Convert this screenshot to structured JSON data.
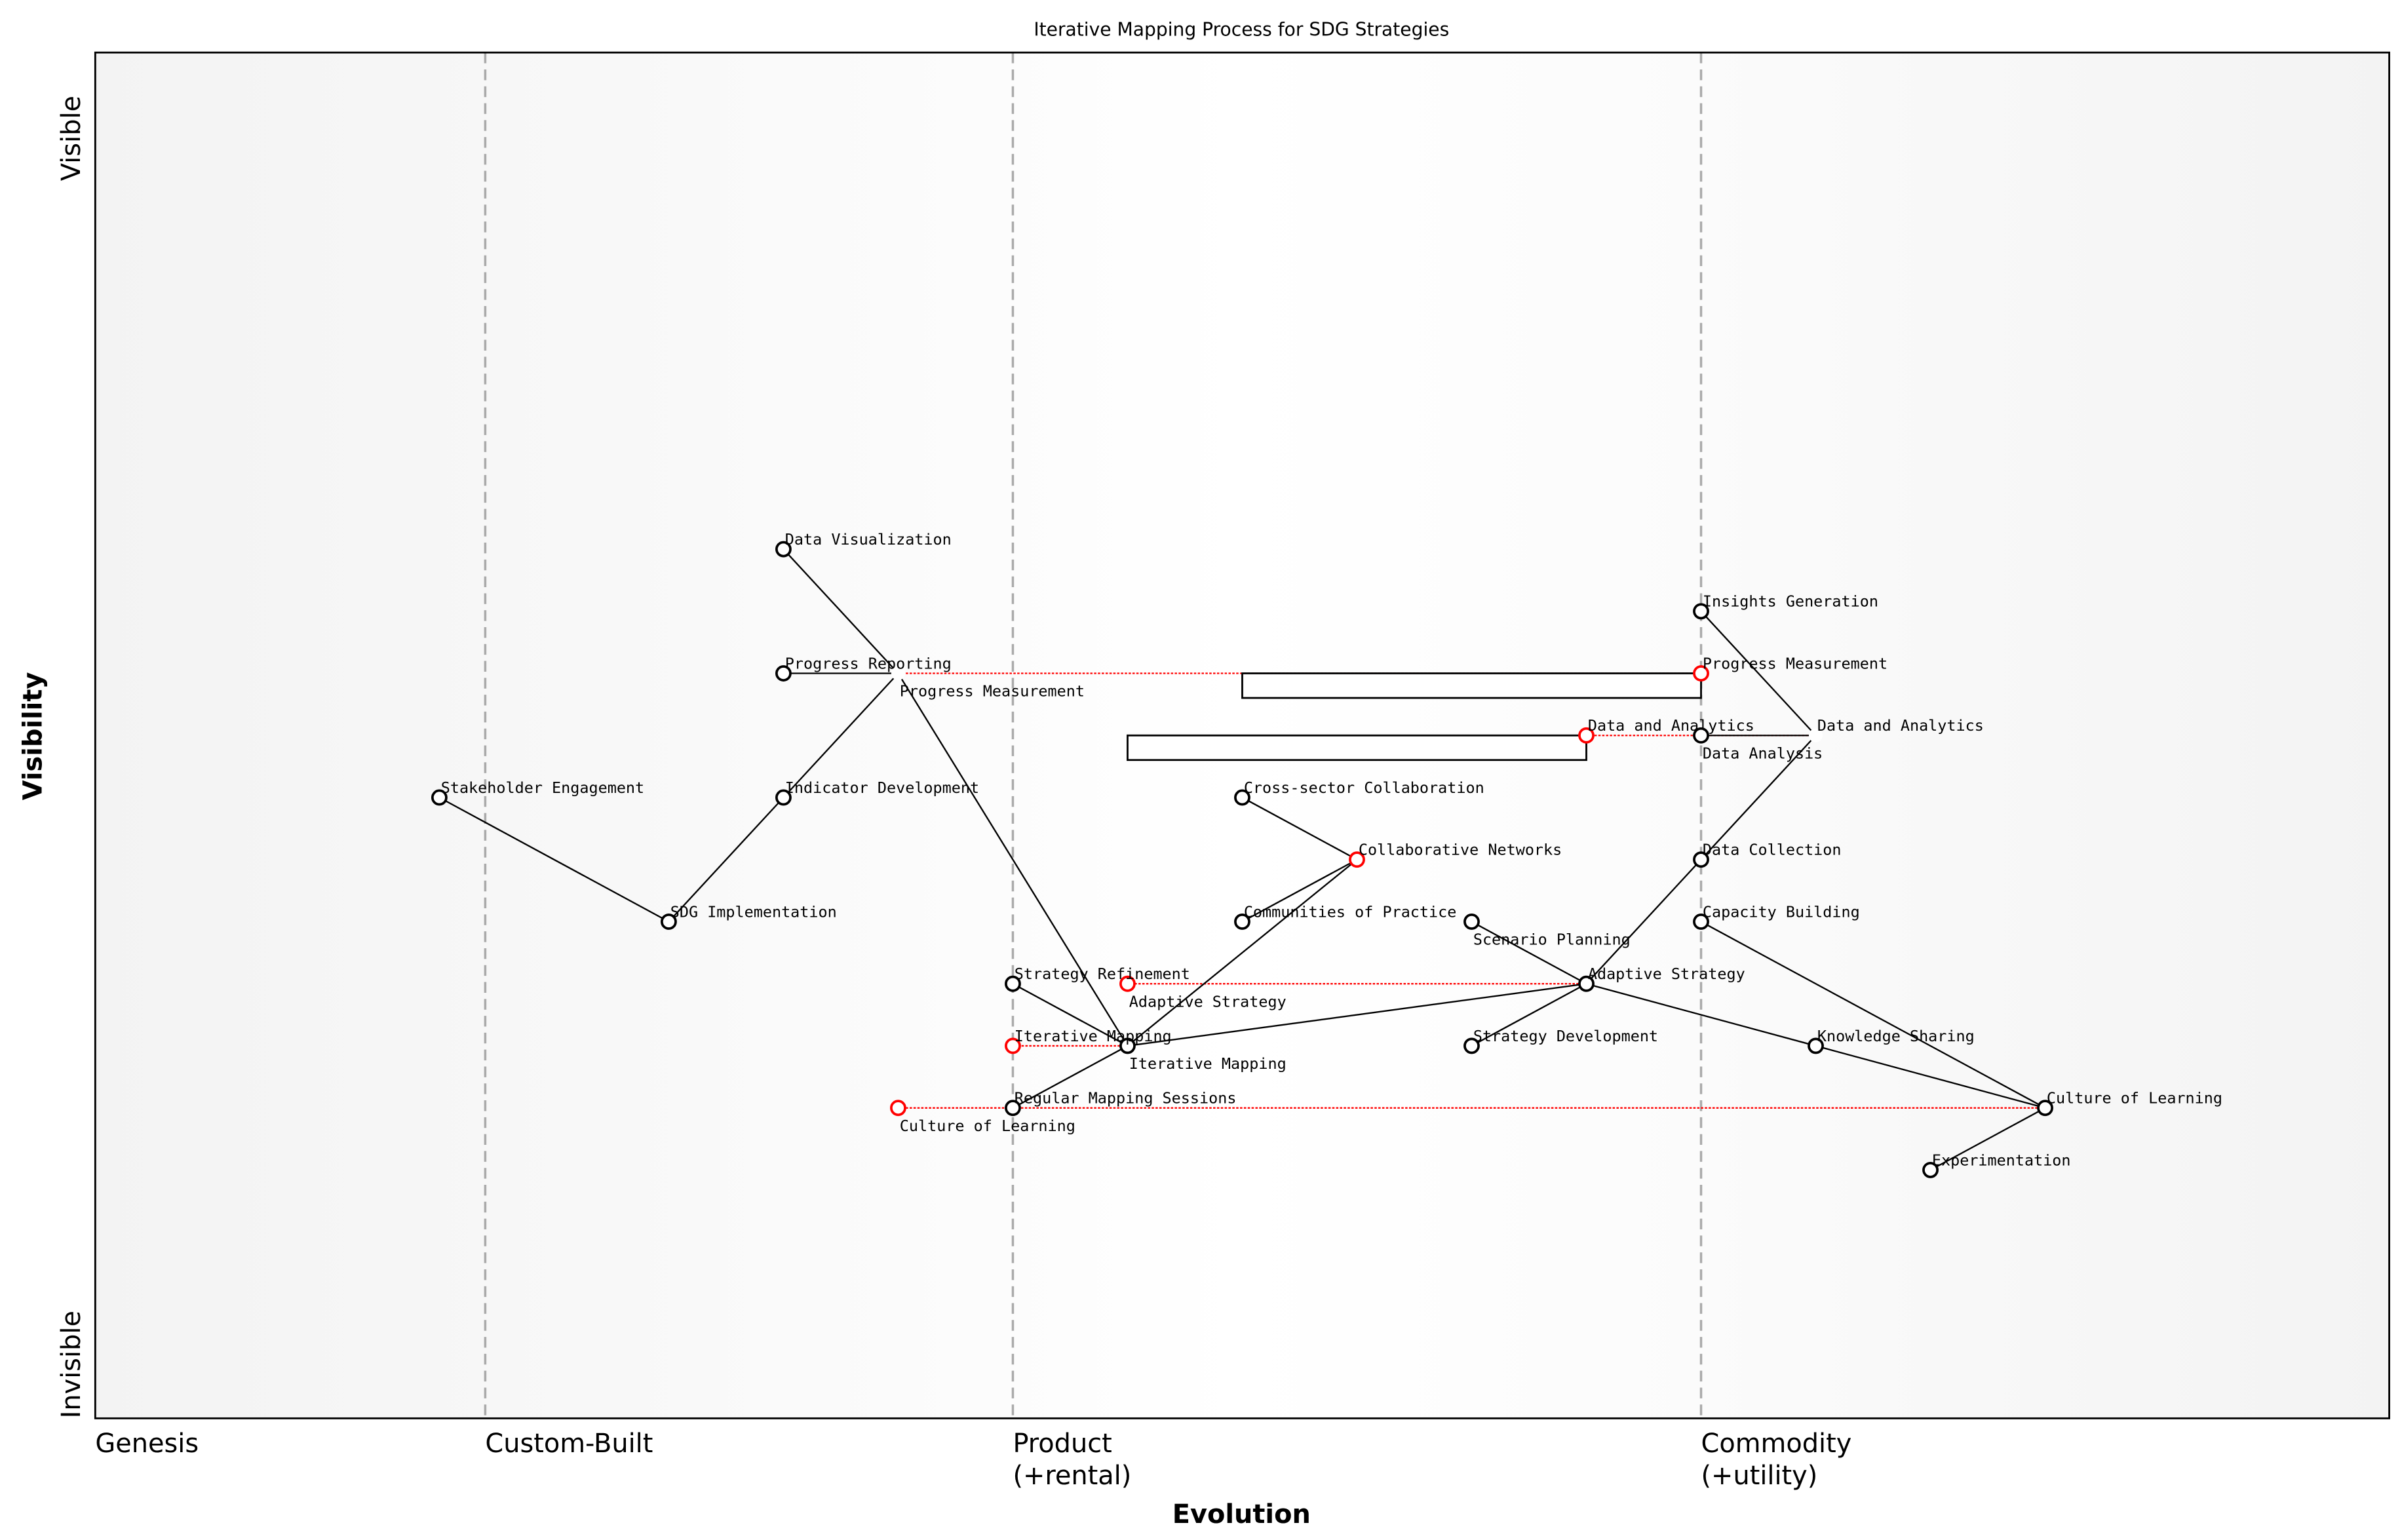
{
  "chart_data": {
    "type": "scatter",
    "subtype": "wardley-map",
    "title": "Iterative Mapping Process for SDG Strategies",
    "xlabel": "Evolution",
    "ylabel": "Visibility",
    "xlim": [
      0,
      1
    ],
    "ylim": [
      0,
      1.1
    ],
    "grid": false,
    "stages": [
      {
        "label": "Genesis",
        "x": 0,
        "line": false
      },
      {
        "label": "Custom-Built",
        "x": 0.17,
        "line": true
      },
      {
        "label": "Product\n(+rental)",
        "x": 0.4,
        "line": true
      },
      {
        "label": "Commodity\n(+utility)",
        "x": 0.7,
        "line": true
      }
    ],
    "y_ticks": [
      {
        "label": "Visible",
        "y": 1.0
      },
      {
        "label": "Invisible",
        "y": 0.0
      }
    ],
    "colors": {
      "component": "#000000",
      "evolved": "#ff0000",
      "stage_line": "#aaaaaa",
      "background_edge": "#f3f3f3",
      "background_center": "#ffffff"
    },
    "components": [
      {
        "name": "Data Visualization",
        "x": 0.3,
        "y": 0.7,
        "marker": "black"
      },
      {
        "name": "Progress Reporting",
        "x": 0.3,
        "y": 0.6,
        "marker": "black"
      },
      {
        "name": "Progress Measurement",
        "x": 0.35,
        "y": 0.6,
        "marker": "hidden"
      },
      {
        "name": "Stakeholder Engagement",
        "x": 0.15,
        "y": 0.5,
        "marker": "black"
      },
      {
        "name": "Indicator Development",
        "x": 0.3,
        "y": 0.5,
        "marker": "black"
      },
      {
        "name": "SDG Implementation",
        "x": 0.25,
        "y": 0.4,
        "marker": "black"
      },
      {
        "name": "Insights Generation",
        "x": 0.7,
        "y": 0.65,
        "marker": "black"
      },
      {
        "name": "Progress Measurement",
        "x": 0.7,
        "y": 0.6,
        "marker": "red"
      },
      {
        "name": "Data and Analytics",
        "x": 0.75,
        "y": 0.55,
        "marker": "hidden"
      },
      {
        "name": "Data and Analytics",
        "x": 0.65,
        "y": 0.55,
        "marker": "red"
      },
      {
        "name": "Data Analysis",
        "x": 0.7,
        "y": 0.55,
        "marker": "black"
      },
      {
        "name": "Cross-sector Collaboration",
        "x": 0.5,
        "y": 0.5,
        "marker": "black"
      },
      {
        "name": "Collaborative Networks",
        "x": 0.55,
        "y": 0.45,
        "marker": "red"
      },
      {
        "name": "Communities of Practice",
        "x": 0.5,
        "y": 0.4,
        "marker": "black"
      },
      {
        "name": "Scenario Planning",
        "x": 0.6,
        "y": 0.4,
        "marker": "black"
      },
      {
        "name": "Data Collection",
        "x": 0.7,
        "y": 0.45,
        "marker": "black"
      },
      {
        "name": "Capacity Building",
        "x": 0.7,
        "y": 0.4,
        "marker": "black"
      },
      {
        "name": "Strategy Refinement",
        "x": 0.4,
        "y": 0.35,
        "marker": "black"
      },
      {
        "name": "Adaptive Strategy",
        "x": 0.45,
        "y": 0.35,
        "marker": "red"
      },
      {
        "name": "Adaptive Strategy",
        "x": 0.65,
        "y": 0.35,
        "marker": "black"
      },
      {
        "name": "Iterative Mapping",
        "x": 0.4,
        "y": 0.3,
        "marker": "red"
      },
      {
        "name": "Iterative Mapping",
        "x": 0.45,
        "y": 0.3,
        "marker": "black"
      },
      {
        "name": "Strategy Development",
        "x": 0.6,
        "y": 0.3,
        "marker": "black"
      },
      {
        "name": "Knowledge Sharing",
        "x": 0.75,
        "y": 0.3,
        "marker": "black"
      },
      {
        "name": "Culture of Learning",
        "x": 0.35,
        "y": 0.25,
        "marker": "red"
      },
      {
        "name": "Regular Mapping Sessions",
        "x": 0.4,
        "y": 0.25,
        "marker": "black"
      },
      {
        "name": "Culture of Learning",
        "x": 0.85,
        "y": 0.25,
        "marker": "black"
      },
      {
        "name": "Experimentation",
        "x": 0.8,
        "y": 0.2,
        "marker": "black"
      }
    ],
    "links": [
      [
        3,
        5
      ],
      [
        5,
        4
      ],
      [
        4,
        2
      ],
      [
        1,
        2
      ],
      [
        0,
        2
      ],
      [
        2,
        21
      ],
      [
        17,
        21
      ],
      [
        21,
        25
      ],
      [
        21,
        12
      ],
      [
        21,
        19
      ],
      [
        11,
        12
      ],
      [
        13,
        12
      ],
      [
        14,
        19
      ],
      [
        22,
        19
      ],
      [
        19,
        15
      ],
      [
        19,
        23
      ],
      [
        15,
        8
      ],
      [
        6,
        8
      ],
      [
        10,
        8
      ],
      [
        23,
        26
      ],
      [
        16,
        26
      ],
      [
        26,
        27
      ]
    ],
    "evolutions": [
      [
        2,
        7
      ],
      [
        8,
        9
      ],
      [
        19,
        18
      ],
      [
        21,
        20
      ],
      [
        26,
        24
      ]
    ],
    "pipelines": [
      {
        "y": 0.6,
        "x_start": 0.5,
        "x_end": 0.7
      },
      {
        "y": 0.55,
        "x_start": 0.45,
        "x_end": 0.65
      }
    ]
  }
}
